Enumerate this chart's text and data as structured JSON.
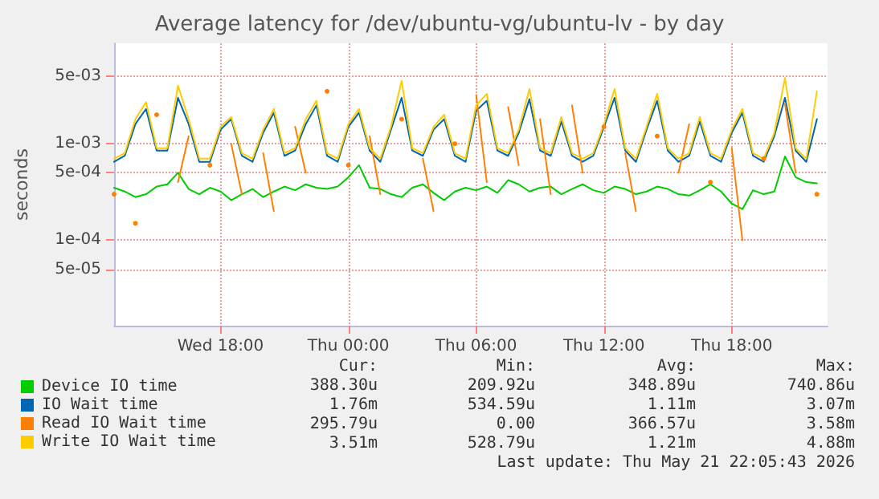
{
  "chart_data": {
    "type": "line",
    "title": "Average latency for /dev/ubuntu-vg/ubuntu-lv - by day",
    "ylabel": "seconds",
    "log": "y",
    "grid": true,
    "legend": "bottom",
    "marker": "none",
    "line_style": "solid",
    "x": [
      "2026-05-20T13:00",
      "2026-05-20T13:30",
      "2026-05-20T14:00",
      "2026-05-20T14:30",
      "2026-05-20T15:00",
      "2026-05-20T15:30",
      "2026-05-20T16:00",
      "2026-05-20T16:30",
      "2026-05-20T17:00",
      "2026-05-20T17:30",
      "2026-05-20T18:00",
      "2026-05-20T18:30",
      "2026-05-20T19:00",
      "2026-05-20T19:30",
      "2026-05-20T20:00",
      "2026-05-20T20:30",
      "2026-05-20T21:00",
      "2026-05-20T21:30",
      "2026-05-20T22:00",
      "2026-05-20T22:30",
      "2026-05-20T23:00",
      "2026-05-20T23:30",
      "2026-05-21T00:00",
      "2026-05-21T00:30",
      "2026-05-21T01:00",
      "2026-05-21T01:30",
      "2026-05-21T02:00",
      "2026-05-21T02:30",
      "2026-05-21T03:00",
      "2026-05-21T03:30",
      "2026-05-21T04:00",
      "2026-05-21T04:30",
      "2026-05-21T05:00",
      "2026-05-21T05:30",
      "2026-05-21T06:00",
      "2026-05-21T06:30",
      "2026-05-21T07:00",
      "2026-05-21T07:30",
      "2026-05-21T08:00",
      "2026-05-21T08:30",
      "2026-05-21T09:00",
      "2026-05-21T09:30",
      "2026-05-21T10:00",
      "2026-05-21T10:30",
      "2026-05-21T11:00",
      "2026-05-21T11:30",
      "2026-05-21T12:00",
      "2026-05-21T12:30",
      "2026-05-21T13:00",
      "2026-05-21T13:30",
      "2026-05-21T14:00",
      "2026-05-21T14:30",
      "2026-05-21T15:00",
      "2026-05-21T15:30",
      "2026-05-21T16:00",
      "2026-05-21T16:30",
      "2026-05-21T17:00",
      "2026-05-21T17:30",
      "2026-05-21T18:00",
      "2026-05-21T18:30",
      "2026-05-21T19:00",
      "2026-05-21T19:30",
      "2026-05-21T20:00",
      "2026-05-21T20:30",
      "2026-05-21T21:00",
      "2026-05-21T21:30",
      "2026-05-21T22:00"
    ],
    "xlim": [
      "2026-05-20T13:00",
      "2026-05-21T22:30"
    ],
    "xticks": [
      {
        "value": "2026-05-20T18:00",
        "label": "Wed 18:00"
      },
      {
        "value": "2026-05-21T00:00",
        "label": "Thu 00:00"
      },
      {
        "value": "2026-05-21T06:00",
        "label": "Thu 06:00"
      },
      {
        "value": "2026-05-21T12:00",
        "label": "Thu 12:00"
      },
      {
        "value": "2026-05-21T18:00",
        "label": "Thu 18:00"
      }
    ],
    "ylim": [
      1.3e-05,
      0.011
    ],
    "yticks": [
      {
        "value": 5e-05,
        "label": "5e-05"
      },
      {
        "value": 0.0001,
        "label": "1e-04"
      },
      {
        "value": 0.0005,
        "label": "5e-04"
      },
      {
        "value": 0.001,
        "label": "1e-03"
      },
      {
        "value": 0.005,
        "label": "5e-03"
      }
    ],
    "series": [
      {
        "name": "Device IO time",
        "color": "#00cc00",
        "values": [
          0.00035,
          0.00032,
          0.00028,
          0.0003,
          0.00036,
          0.00038,
          0.0005,
          0.00034,
          0.0003,
          0.00035,
          0.00032,
          0.00026,
          0.0003,
          0.00034,
          0.00028,
          0.00032,
          0.00036,
          0.00033,
          0.00038,
          0.00035,
          0.00034,
          0.00036,
          0.00045,
          0.0006,
          0.00035,
          0.00034,
          0.0003,
          0.00028,
          0.00035,
          0.00038,
          0.00031,
          0.00026,
          0.00032,
          0.00035,
          0.00033,
          0.00036,
          0.00031,
          0.00042,
          0.00038,
          0.00032,
          0.00035,
          0.00036,
          0.0003,
          0.00034,
          0.00038,
          0.00033,
          0.00031,
          0.00036,
          0.00034,
          0.0003,
          0.00032,
          0.00036,
          0.00034,
          0.0003,
          0.00029,
          0.00033,
          0.00038,
          0.00032,
          0.00024,
          0.00021,
          0.00033,
          0.0003,
          0.00032,
          0.00074,
          0.00045,
          0.0004,
          0.00039
        ]
      },
      {
        "name": "IO Wait time",
        "color": "#0066b3",
        "values": [
          0.00065,
          0.00075,
          0.0016,
          0.0023,
          0.00085,
          0.00085,
          0.003,
          0.0016,
          0.00065,
          0.00065,
          0.0014,
          0.0018,
          0.00075,
          0.00065,
          0.0013,
          0.0021,
          0.00075,
          0.00085,
          0.0016,
          0.0025,
          0.00075,
          0.00065,
          0.0015,
          0.0021,
          0.00085,
          0.00065,
          0.0014,
          0.003,
          0.00085,
          0.00075,
          0.0014,
          0.0018,
          0.00075,
          0.00065,
          0.0022,
          0.0028,
          0.00085,
          0.00075,
          0.0013,
          0.0029,
          0.00085,
          0.00075,
          0.0017,
          0.00075,
          0.00065,
          0.00075,
          0.0015,
          0.003,
          0.00085,
          0.00065,
          0.0014,
          0.0028,
          0.00085,
          0.00065,
          0.00075,
          0.0017,
          0.00075,
          0.00065,
          0.0013,
          0.0021,
          0.00075,
          0.00065,
          0.0012,
          0.003,
          0.00085,
          0.00065,
          0.0018
        ]
      },
      {
        "name": "Read IO Wait time",
        "color": "#ff8000",
        "values": [
          0.0003,
          null,
          0.00015,
          null,
          0.002,
          null,
          0.0004,
          0.0012,
          null,
          0.0006,
          null,
          0.001,
          0.0003,
          null,
          0.0008,
          0.0002,
          null,
          0.0015,
          0.0005,
          null,
          0.0035,
          null,
          0.0006,
          null,
          0.0012,
          0.0003,
          null,
          0.0018,
          null,
          0.0007,
          0.0002,
          null,
          0.001,
          null,
          0.0032,
          0.0004,
          null,
          0.0024,
          0.0006,
          null,
          0.0018,
          0.0003,
          null,
          0.0025,
          0.0005,
          null,
          0.0015,
          null,
          0.0008,
          0.0002,
          null,
          0.0012,
          null,
          0.0005,
          0.0016,
          null,
          0.0004,
          null,
          0.0009,
          0.0001,
          null,
          0.0007,
          null,
          0.0026,
          0.0005,
          null,
          0.0003
        ]
      },
      {
        "name": "Write IO Wait time",
        "color": "#ffcc00",
        "values": [
          0.0007,
          0.0008,
          0.0018,
          0.0027,
          0.0009,
          0.0009,
          0.004,
          0.0018,
          0.0007,
          0.0007,
          0.0015,
          0.0019,
          0.0008,
          0.0007,
          0.0014,
          0.0023,
          0.0008,
          0.0009,
          0.0018,
          0.0028,
          0.0008,
          0.0007,
          0.0016,
          0.0023,
          0.0009,
          0.0007,
          0.0015,
          0.0045,
          0.0009,
          0.0008,
          0.0015,
          0.002,
          0.0008,
          0.0007,
          0.0025,
          0.0033,
          0.0009,
          0.0008,
          0.0014,
          0.0037,
          0.0009,
          0.0008,
          0.0019,
          0.0008,
          0.0007,
          0.0008,
          0.0016,
          0.0037,
          0.0009,
          0.0007,
          0.0015,
          0.0033,
          0.0009,
          0.0007,
          0.0008,
          0.0019,
          0.0008,
          0.0007,
          0.0014,
          0.0023,
          0.0008,
          0.0007,
          0.0013,
          0.0048,
          0.0009,
          0.0007,
          0.0035
        ]
      }
    ],
    "annotations": [
      "Cur:",
      "Min:",
      "Avg:",
      "Max:",
      "388.30u",
      "209.92u",
      "348.89u",
      "740.86u",
      "1.76m",
      "534.59u",
      "1.11m",
      "3.07m",
      "295.79u",
      "0.00",
      "366.57u",
      "3.58m",
      "3.51m",
      "528.79u",
      "1.21m",
      "4.88m",
      "Last update: Thu May 21 22:05:43 2026"
    ]
  }
}
